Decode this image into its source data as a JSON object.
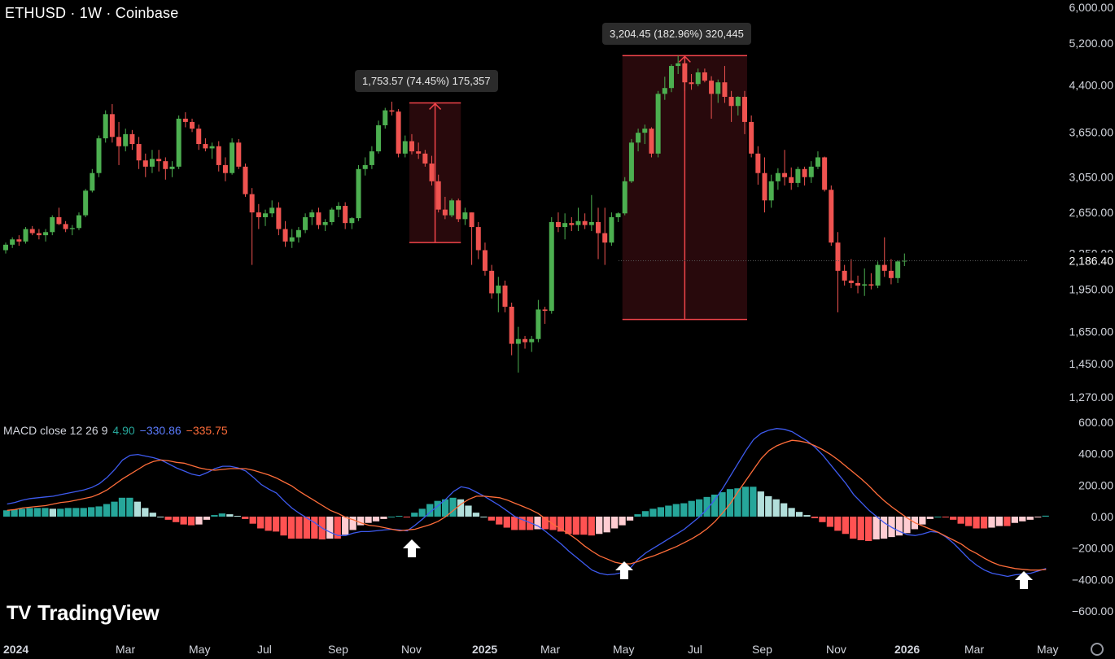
{
  "header": {
    "symbol_title": "ETHUSD · 1W · Coinbase"
  },
  "macd_legend": {
    "label": "MACD close 12 26 9",
    "hist": "4.90",
    "macd": "−330.86",
    "signal": "−335.75"
  },
  "tooltips": [
    {
      "text": "1,753.57 (74.45%) 175,357"
    },
    {
      "text": "3,204.45 (182.96%) 320,445"
    }
  ],
  "last_price_label": "2,186.40",
  "brand": {
    "name": "TradingView",
    "logo": "TV"
  },
  "colors": {
    "up": "#26a69a",
    "up_bright": "#4caf50",
    "down": "#ef5350",
    "macd_line": "#3e5bf0",
    "signal_line": "#ff6d3a",
    "hist_up_strong": "#26a69a",
    "hist_up_weak": "#b2dfdb",
    "hist_down_strong": "#ff5252",
    "hist_down_weak": "#ffcdd2",
    "measure_box": "#2a0a0d",
    "measure_line": "#f0444a"
  },
  "chart_data": {
    "type": "candlestick",
    "price_axis": {
      "scale": "log",
      "ticks": [
        "6,000.00",
        "5,200.00",
        "4,400.00",
        "3,650.00",
        "3,050.00",
        "2,650.00",
        "2,250.00",
        "1,950.00",
        "1,650.00",
        "1,450.00",
        "1,270.00"
      ],
      "tick_values": [
        6000,
        5200,
        4400,
        3650,
        3050,
        2650,
        2250,
        1950,
        1650,
        1450,
        1270
      ]
    },
    "macd_axis": {
      "ticks": [
        "600.00",
        "400.00",
        "200.00",
        "0.00",
        "−200.00",
        "−400.00",
        "−600.00"
      ],
      "tick_values": [
        600,
        400,
        200,
        0,
        -200,
        -400,
        -600
      ]
    },
    "time_axis": {
      "labels": [
        "2024",
        "Mar",
        "May",
        "Jul",
        "Sep",
        "Nov",
        "2025",
        "Mar",
        "May",
        "Jul",
        "Sep",
        "Nov",
        "2026",
        "Mar",
        "May"
      ],
      "bold": [
        "2024",
        "2025",
        "2026"
      ]
    },
    "candles": [
      [
        2280,
        2350,
        2250,
        2330
      ],
      [
        2330,
        2400,
        2300,
        2380
      ],
      [
        2380,
        2420,
        2320,
        2360
      ],
      [
        2360,
        2500,
        2340,
        2480
      ],
      [
        2480,
        2510,
        2420,
        2440
      ],
      [
        2440,
        2480,
        2380,
        2420
      ],
      [
        2420,
        2480,
        2360,
        2450
      ],
      [
        2450,
        2620,
        2420,
        2600
      ],
      [
        2600,
        2700,
        2520,
        2530
      ],
      [
        2530,
        2560,
        2450,
        2480
      ],
      [
        2480,
        2520,
        2420,
        2490
      ],
      [
        2490,
        2650,
        2470,
        2620
      ],
      [
        2620,
        2910,
        2600,
        2890
      ],
      [
        2890,
        3150,
        2870,
        3100
      ],
      [
        3100,
        3600,
        3050,
        3560
      ],
      [
        3560,
        3980,
        3500,
        3920
      ],
      [
        3920,
        4080,
        3500,
        3580
      ],
      [
        3580,
        3800,
        3200,
        3450
      ],
      [
        3450,
        3700,
        3380,
        3620
      ],
      [
        3620,
        3680,
        3400,
        3480
      ],
      [
        3480,
        3580,
        3150,
        3260
      ],
      [
        3260,
        3350,
        3050,
        3180
      ],
      [
        3180,
        3400,
        3100,
        3280
      ],
      [
        3280,
        3400,
        3120,
        3250
      ],
      [
        3250,
        3300,
        3020,
        3150
      ],
      [
        3150,
        3250,
        3050,
        3180
      ],
      [
        3180,
        3900,
        3150,
        3850
      ],
      [
        3850,
        3950,
        3720,
        3800
      ],
      [
        3800,
        3850,
        3650,
        3700
      ],
      [
        3700,
        3760,
        3400,
        3480
      ],
      [
        3480,
        3560,
        3380,
        3420
      ],
      [
        3420,
        3500,
        3280,
        3450
      ],
      [
        3450,
        3520,
        3120,
        3200
      ],
      [
        3200,
        3300,
        3000,
        3100
      ],
      [
        3100,
        3560,
        3080,
        3500
      ],
      [
        3500,
        3550,
        3150,
        3180
      ],
      [
        3180,
        3220,
        2820,
        2850
      ],
      [
        2850,
        2920,
        2150,
        2650
      ],
      [
        2650,
        2740,
        2480,
        2600
      ],
      [
        2600,
        2680,
        2510,
        2640
      ],
      [
        2640,
        2780,
        2600,
        2700
      ],
      [
        2700,
        2760,
        2420,
        2480
      ],
      [
        2480,
        2560,
        2310,
        2360
      ],
      [
        2360,
        2480,
        2300,
        2400
      ],
      [
        2400,
        2500,
        2350,
        2470
      ],
      [
        2470,
        2640,
        2440,
        2600
      ],
      [
        2600,
        2680,
        2520,
        2650
      ],
      [
        2650,
        2700,
        2480,
        2520
      ],
      [
        2520,
        2580,
        2460,
        2550
      ],
      [
        2550,
        2700,
        2520,
        2680
      ],
      [
        2680,
        2760,
        2600,
        2720
      ],
      [
        2720,
        2760,
        2480,
        2540
      ],
      [
        2540,
        2600,
        2480,
        2590
      ],
      [
        2590,
        3200,
        2560,
        3150
      ],
      [
        3150,
        3300,
        3070,
        3200
      ],
      [
        3200,
        3450,
        3150,
        3380
      ],
      [
        3380,
        3820,
        3350,
        3750
      ],
      [
        3750,
        4020,
        3700,
        3980
      ],
      [
        3980,
        4120,
        3900,
        3960
      ],
      [
        3960,
        4000,
        3300,
        3350
      ],
      [
        3350,
        3600,
        3300,
        3520
      ],
      [
        3520,
        3620,
        3340,
        3380
      ],
      [
        3380,
        3500,
        3280,
        3350
      ],
      [
        3350,
        3400,
        3180,
        3220
      ],
      [
        3220,
        3320,
        2950,
        3000
      ],
      [
        3000,
        3080,
        2650,
        2680
      ],
      [
        2680,
        2820,
        2580,
        2620
      ],
      [
        2620,
        2800,
        2600,
        2780
      ],
      [
        2780,
        2800,
        2550,
        2580
      ],
      [
        2580,
        2700,
        2520,
        2650
      ],
      [
        2650,
        2650,
        2150,
        2500
      ],
      [
        2500,
        2550,
        2200,
        2280
      ],
      [
        2280,
        2350,
        2060,
        2100
      ],
      [
        2100,
        2150,
        1880,
        1920
      ],
      [
        1920,
        2050,
        1780,
        1980
      ],
      [
        1980,
        2020,
        1780,
        1820
      ],
      [
        1820,
        1850,
        1500,
        1570
      ],
      [
        1570,
        1680,
        1400,
        1600
      ],
      [
        1600,
        1620,
        1540,
        1580
      ],
      [
        1580,
        1620,
        1520,
        1600
      ],
      [
        1600,
        1870,
        1580,
        1800
      ],
      [
        1800,
        1820,
        1700,
        1790
      ],
      [
        1790,
        2600,
        1770,
        2550
      ],
      [
        2550,
        2650,
        2450,
        2500
      ],
      [
        2500,
        2640,
        2380,
        2540
      ],
      [
        2540,
        2600,
        2460,
        2520
      ],
      [
        2520,
        2700,
        2460,
        2560
      ],
      [
        2560,
        2640,
        2480,
        2520
      ],
      [
        2520,
        2840,
        2460,
        2550
      ],
      [
        2550,
        2700,
        2200,
        2440
      ],
      [
        2440,
        2700,
        2150,
        2350
      ],
      [
        2350,
        2650,
        2320,
        2600
      ],
      [
        2600,
        2650,
        2550,
        2640
      ],
      [
        2640,
        3050,
        2620,
        3000
      ],
      [
        3000,
        3550,
        2980,
        3500
      ],
      [
        3500,
        3700,
        3380,
        3640
      ],
      [
        3640,
        3760,
        3480,
        3700
      ],
      [
        3700,
        3720,
        3300,
        3350
      ],
      [
        3350,
        4300,
        3300,
        4250
      ],
      [
        4250,
        4550,
        4150,
        4350
      ],
      [
        4350,
        4780,
        4280,
        4750
      ],
      [
        4750,
        4950,
        4600,
        4800
      ],
      [
        4800,
        4840,
        4300,
        4450
      ],
      [
        4450,
        4600,
        4320,
        4420
      ],
      [
        4420,
        4700,
        4380,
        4630
      ],
      [
        4630,
        4700,
        4450,
        4480
      ],
      [
        4480,
        4560,
        3850,
        4250
      ],
      [
        4250,
        4500,
        4100,
        4450
      ],
      [
        4450,
        4750,
        4100,
        4200
      ],
      [
        4200,
        4300,
        3800,
        4050
      ],
      [
        4050,
        4210,
        3900,
        4200
      ],
      [
        4200,
        4300,
        3620,
        3800
      ],
      [
        3800,
        3900,
        3300,
        3350
      ],
      [
        3350,
        3450,
        2960,
        3100
      ],
      [
        3100,
        3300,
        2650,
        2780
      ],
      [
        2780,
        3080,
        2700,
        3000
      ],
      [
        3000,
        3160,
        2900,
        3100
      ],
      [
        3100,
        3400,
        2950,
        3050
      ],
      [
        3050,
        3170,
        2900,
        2980
      ],
      [
        2980,
        3180,
        2930,
        3150
      ],
      [
        3150,
        3180,
        2950,
        3050
      ],
      [
        3050,
        3250,
        2980,
        3180
      ],
      [
        3180,
        3380,
        3150,
        3300
      ],
      [
        3300,
        3310,
        2880,
        2900
      ],
      [
        2900,
        2950,
        2320,
        2350
      ],
      [
        2350,
        2450,
        1780,
        2100
      ],
      [
        2100,
        2150,
        1980,
        2020
      ],
      [
        2020,
        2200,
        1960,
        2000
      ],
      [
        2000,
        2060,
        1920,
        1980
      ],
      [
        1980,
        2120,
        1900,
        1990
      ],
      [
        1990,
        2080,
        1950,
        1980
      ],
      [
        1980,
        2180,
        1960,
        2150
      ],
      [
        2150,
        2400,
        2050,
        2100
      ],
      [
        2100,
        2200,
        1990,
        2040
      ],
      [
        2040,
        2190,
        2000,
        2180
      ],
      [
        2180,
        2250,
        2140,
        2186
      ]
    ],
    "macd": {
      "macd_line": [
        80,
        90,
        105,
        115,
        120,
        125,
        130,
        140,
        150,
        160,
        170,
        185,
        210,
        250,
        300,
        360,
        390,
        395,
        385,
        375,
        360,
        335,
        310,
        290,
        270,
        260,
        280,
        305,
        320,
        320,
        310,
        290,
        250,
        205,
        175,
        150,
        100,
        55,
        20,
        -10,
        -40,
        -75,
        -100,
        -120,
        -120,
        -105,
        -95,
        -95,
        -90,
        -85,
        -80,
        -85,
        -90,
        -55,
        -15,
        30,
        70,
        110,
        160,
        190,
        180,
        155,
        130,
        100,
        70,
        35,
        0,
        -20,
        -40,
        -60,
        -95,
        -135,
        -175,
        -220,
        -260,
        -300,
        -340,
        -360,
        -370,
        -365,
        -355,
        -325,
        -270,
        -230,
        -200,
        -170,
        -140,
        -110,
        -80,
        -40,
        0,
        50,
        110,
        180,
        260,
        340,
        420,
        490,
        530,
        550,
        560,
        555,
        540,
        510,
        480,
        440,
        390,
        330,
        270,
        210,
        140,
        90,
        40,
        0,
        -40,
        -70,
        -95,
        -115,
        -120,
        -110,
        -95,
        -100,
        -130,
        -170,
        -220,
        -270,
        -310,
        -340,
        -360,
        -370,
        -380,
        -370,
        -365,
        -360,
        -345,
        -330
      ],
      "signal_line": [
        40,
        45,
        55,
        60,
        65,
        70,
        80,
        90,
        95,
        105,
        115,
        125,
        145,
        170,
        205,
        240,
        270,
        300,
        330,
        350,
        360,
        355,
        345,
        340,
        325,
        310,
        300,
        295,
        300,
        305,
        305,
        305,
        295,
        280,
        265,
        245,
        220,
        195,
        160,
        130,
        100,
        70,
        40,
        20,
        -5,
        -20,
        -40,
        -55,
        -60,
        -70,
        -80,
        -90,
        -85,
        -80,
        -65,
        -50,
        -30,
        0,
        40,
        80,
        110,
        130,
        130,
        125,
        120,
        105,
        85,
        65,
        45,
        20,
        -15,
        -50,
        -80,
        -110,
        -145,
        -185,
        -220,
        -250,
        -270,
        -290,
        -300,
        -300,
        -285,
        -265,
        -250,
        -230,
        -210,
        -190,
        -165,
        -140,
        -110,
        -75,
        -30,
        25,
        85,
        160,
        230,
        300,
        370,
        420,
        450,
        470,
        485,
        480,
        470,
        450,
        425,
        395,
        360,
        320,
        280,
        240,
        195,
        145,
        100,
        60,
        25,
        -10,
        -40,
        -60,
        -80,
        -100,
        -125,
        -150,
        -175,
        -210,
        -235,
        -265,
        -290,
        -310,
        -320,
        -330,
        -335,
        -340,
        -340,
        -336
      ]
    }
  }
}
